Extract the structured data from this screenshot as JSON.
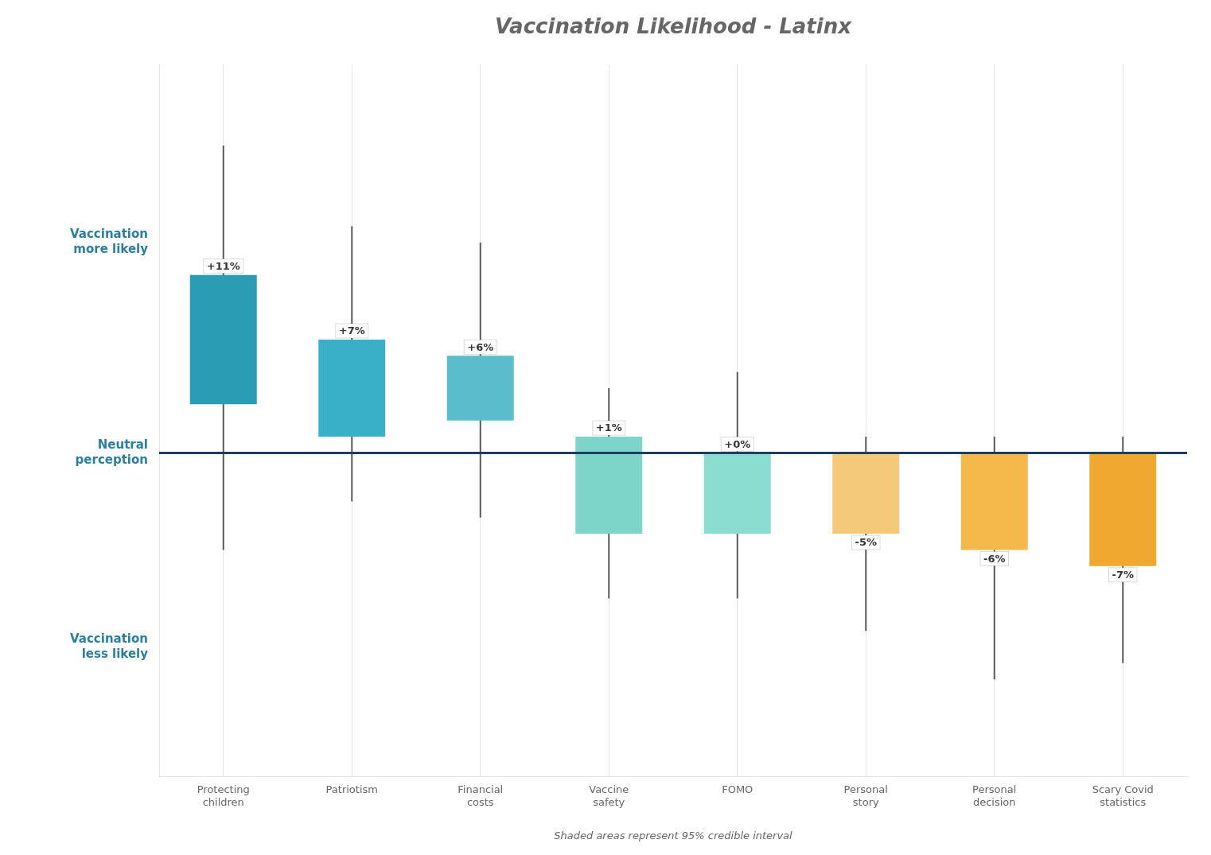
{
  "chart_data": {
    "type": "bar",
    "title": "Vaccination Likelihood - Latinx",
    "subtitle": "Shaded areas represent 95% credible interval",
    "categories": [
      "Protecting\nchildren",
      "Patriotism",
      "Financial\ncosts",
      "Vaccine\nsafety",
      "FOMO",
      "Personal\nstory",
      "Personal\ndecision",
      "Scary Covid\nstatistics"
    ],
    "values": [
      11,
      7,
      6,
      1,
      0,
      -5,
      -6,
      -7
    ],
    "value_labels": [
      "+11%",
      "+7%",
      "+6%",
      "+1%",
      "+0%",
      "-5%",
      "-6%",
      "-7%"
    ],
    "bar_bottom": [
      3,
      1,
      2,
      -5,
      -5,
      -5,
      -6,
      -7
    ],
    "bar_top": [
      11,
      7,
      6,
      1,
      0,
      0,
      0,
      0
    ],
    "whisker_bottom": [
      -6,
      -3,
      -4,
      -9,
      -9,
      -11,
      -14,
      -13
    ],
    "whisker_top": [
      19,
      14,
      13,
      4,
      5,
      1,
      1,
      1
    ],
    "colors": [
      "#2a9db5",
      "#3aafc8",
      "#5bbccc",
      "#7dd4c8",
      "#8addd0",
      "#f5c97a",
      "#f5b84a",
      "#f0a830"
    ],
    "ylim": [
      -20,
      24
    ],
    "tick_labels": "x",
    "grid": true,
    "data_labels": true,
    "reference_line": {
      "y": 0,
      "color": "#1d3f5e"
    },
    "annotations": [
      {
        "text": "Vaccination\nmore likely",
        "y": 13
      },
      {
        "text": "Neutral\nperception",
        "y": 0
      },
      {
        "text": "Vaccination\nless likely",
        "y": -12
      }
    ]
  }
}
